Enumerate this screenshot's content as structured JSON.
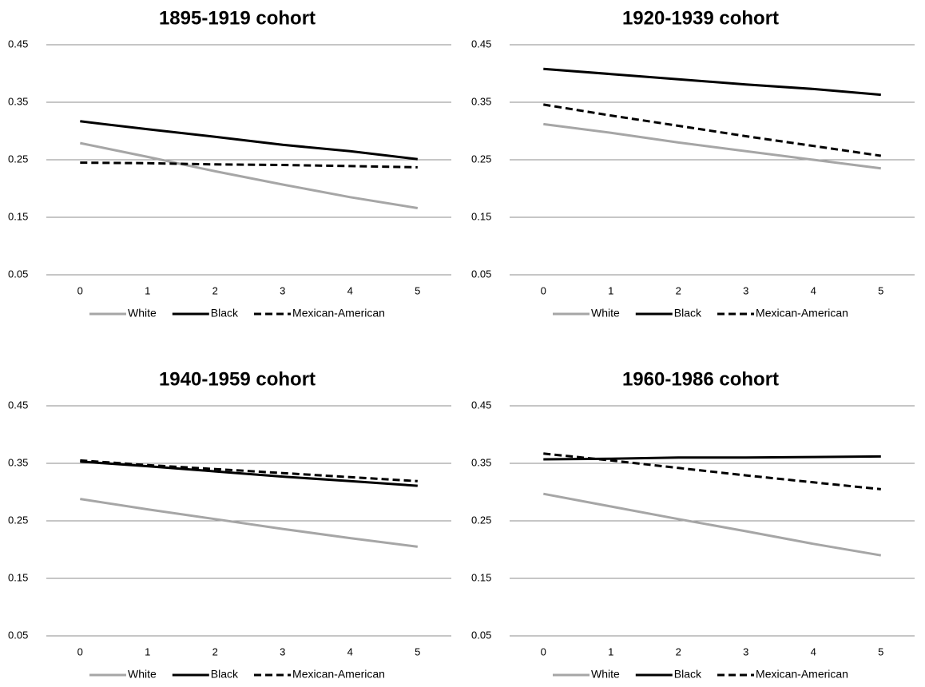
{
  "chart_data": [
    {
      "type": "line",
      "title": "1895-1919 cohort",
      "categories": [
        "0",
        "1",
        "2",
        "3",
        "4",
        "5"
      ],
      "ylim": [
        0.05,
        0.45
      ],
      "yticks": [
        0.05,
        0.15,
        0.25,
        0.35,
        0.45
      ],
      "grid": true,
      "legend": "bottom",
      "series": [
        {
          "name": "White",
          "color": "#a6a6a6",
          "dashed": false,
          "values": [
            0.279,
            0.255,
            0.23,
            0.207,
            0.185,
            0.166
          ]
        },
        {
          "name": "Black",
          "color": "#000000",
          "dashed": false,
          "values": [
            0.317,
            0.303,
            0.29,
            0.276,
            0.265,
            0.251
          ]
        },
        {
          "name": "Mexican-American",
          "color": "#000000",
          "dashed": true,
          "values": [
            0.245,
            0.244,
            0.242,
            0.241,
            0.239,
            0.237
          ]
        }
      ]
    },
    {
      "type": "line",
      "title": "1920-1939 cohort",
      "categories": [
        "0",
        "1",
        "2",
        "3",
        "4",
        "5"
      ],
      "ylim": [
        0.05,
        0.45
      ],
      "yticks": [
        0.05,
        0.15,
        0.25,
        0.35,
        0.45
      ],
      "grid": true,
      "legend": "bottom",
      "series": [
        {
          "name": "White",
          "color": "#a6a6a6",
          "dashed": false,
          "values": [
            0.312,
            0.297,
            0.28,
            0.265,
            0.25,
            0.235
          ]
        },
        {
          "name": "Black",
          "color": "#000000",
          "dashed": false,
          "values": [
            0.408,
            0.399,
            0.39,
            0.381,
            0.373,
            0.363
          ]
        },
        {
          "name": "Mexican-American",
          "color": "#000000",
          "dashed": true,
          "values": [
            0.346,
            0.327,
            0.309,
            0.291,
            0.274,
            0.257
          ]
        }
      ]
    },
    {
      "type": "line",
      "title": "1940-1959 cohort",
      "categories": [
        "0",
        "1",
        "2",
        "3",
        "4",
        "5"
      ],
      "ylim": [
        0.05,
        0.45
      ],
      "yticks": [
        0.05,
        0.15,
        0.25,
        0.35,
        0.45
      ],
      "grid": true,
      "legend": "bottom",
      "series": [
        {
          "name": "White",
          "color": "#a6a6a6",
          "dashed": false,
          "values": [
            0.288,
            0.27,
            0.253,
            0.236,
            0.22,
            0.205
          ]
        },
        {
          "name": "Black",
          "color": "#000000",
          "dashed": false,
          "values": [
            0.353,
            0.345,
            0.336,
            0.327,
            0.319,
            0.311
          ]
        },
        {
          "name": "Mexican-American",
          "color": "#000000",
          "dashed": true,
          "values": [
            0.355,
            0.347,
            0.34,
            0.333,
            0.326,
            0.319
          ]
        }
      ]
    },
    {
      "type": "line",
      "title": "1960-1986 cohort",
      "categories": [
        "0",
        "1",
        "2",
        "3",
        "4",
        "5"
      ],
      "ylim": [
        0.05,
        0.45
      ],
      "yticks": [
        0.05,
        0.15,
        0.25,
        0.35,
        0.45
      ],
      "grid": true,
      "legend": "bottom",
      "series": [
        {
          "name": "White",
          "color": "#a6a6a6",
          "dashed": false,
          "values": [
            0.297,
            0.275,
            0.253,
            0.232,
            0.21,
            0.19
          ]
        },
        {
          "name": "Black",
          "color": "#000000",
          "dashed": false,
          "values": [
            0.357,
            0.358,
            0.36,
            0.36,
            0.361,
            0.362
          ]
        },
        {
          "name": "Mexican-American",
          "color": "#000000",
          "dashed": true,
          "values": [
            0.367,
            0.355,
            0.342,
            0.329,
            0.317,
            0.305
          ]
        }
      ]
    }
  ]
}
